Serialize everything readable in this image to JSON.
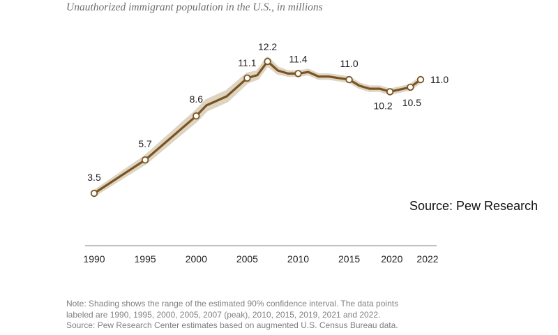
{
  "chart_data": {
    "type": "line",
    "title": "Unauthorized immigrant population in the U.S., in millions",
    "xlabel": "",
    "ylabel": "",
    "xlim": [
      1990,
      2022
    ],
    "ylim": [
      3,
      13
    ],
    "x_ticks": [
      1990,
      1995,
      2000,
      2005,
      2010,
      2015,
      2020,
      2022
    ],
    "tick_labels": [
      "1990",
      "1995",
      "2000",
      "2005",
      "2010",
      "2015",
      "2020",
      "2022"
    ],
    "series": [
      {
        "name": "Unauthorized immigrant population (millions)",
        "color": "#7a5321",
        "x": [
          1990,
          1995,
          2000,
          2001,
          2003,
          2005,
          2006,
          2007,
          2008,
          2009,
          2010,
          2011,
          2012,
          2013,
          2014,
          2015,
          2016,
          2017,
          2018,
          2019,
          2021,
          2022
        ],
        "y": [
          3.5,
          5.7,
          8.6,
          9.3,
          9.9,
          11.1,
          11.3,
          12.2,
          11.6,
          11.4,
          11.4,
          11.5,
          11.2,
          11.2,
          11.1,
          11.0,
          10.6,
          10.4,
          10.4,
          10.2,
          10.5,
          11.0
        ],
        "ci_low": [
          3.4,
          5.5,
          8.3,
          9.0,
          9.6,
          10.85,
          11.1,
          12.0,
          11.45,
          11.3,
          11.3,
          11.4,
          11.1,
          11.1,
          11.0,
          10.9,
          10.5,
          10.3,
          10.3,
          10.1,
          10.4,
          10.9
        ],
        "ci_high": [
          3.6,
          5.9,
          8.9,
          9.6,
          10.2,
          11.35,
          11.5,
          12.4,
          11.75,
          11.5,
          11.5,
          11.6,
          11.3,
          11.3,
          11.2,
          11.1,
          10.7,
          10.5,
          10.5,
          10.3,
          10.6,
          11.1
        ]
      }
    ],
    "data_labels": [
      {
        "x": 1990,
        "y": 3.5,
        "text": "3.5"
      },
      {
        "x": 1995,
        "y": 5.7,
        "text": "5.7"
      },
      {
        "x": 2000,
        "y": 8.6,
        "text": "8.6"
      },
      {
        "x": 2005,
        "y": 11.1,
        "text": "11.1"
      },
      {
        "x": 2007,
        "y": 12.2,
        "text": "12.2"
      },
      {
        "x": 2010,
        "y": 11.4,
        "text": "11.4"
      },
      {
        "x": 2015,
        "y": 11.0,
        "text": "11.0"
      },
      {
        "x": 2019,
        "y": 10.2,
        "text": "10.2"
      },
      {
        "x": 2021,
        "y": 10.5,
        "text": "10.5"
      },
      {
        "x": 2022,
        "y": 11.0,
        "text": "11.0"
      }
    ],
    "grid": false,
    "legend": "none",
    "colors": {
      "line": "#7a5321",
      "band": "#ddd4c2",
      "axis": "#9a9a9a",
      "marker_fill": "#ffffff",
      "label": "#222222",
      "tick": "#222222"
    }
  },
  "side_source": "Source: Pew Research",
  "note_lines": [
    "Note: Shading shows the range of the estimated 90% confidence interval. The data points",
    "labeled are 1990, 1995, 2000, 2005, 2007 (peak), 2010, 2015, 2019, 2021 and 2022.",
    "Source: Pew Research Center estimates based on augmented U.S. Census Bureau data."
  ]
}
